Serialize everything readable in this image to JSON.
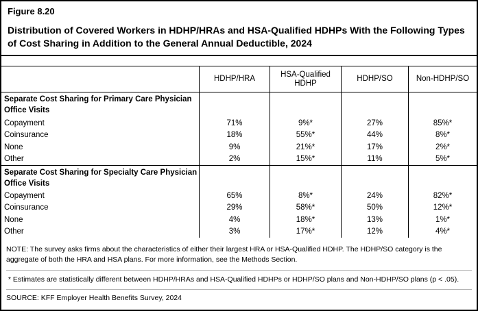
{
  "figure": {
    "label": "Figure 8.20",
    "title": "Distribution of Covered Workers in HDHP/HRAs and HSA-Qualified HDHPs With the Following Types of Cost Sharing in Addition to the General Annual Deductible, 2024"
  },
  "table": {
    "columns": [
      "HDHP/HRA",
      "HSA-Qualified HDHP",
      "HDHP/SO",
      "Non-HDHP/SO"
    ],
    "sections": [
      {
        "header": "Separate Cost Sharing for Primary Care Physician Office Visits",
        "rows": [
          {
            "label": "Copayment",
            "values": [
              "71%",
              "9%*",
              "27%",
              "85%*"
            ]
          },
          {
            "label": "Coinsurance",
            "values": [
              "18%",
              "55%*",
              "44%",
              "8%*"
            ]
          },
          {
            "label": "None",
            "values": [
              "9%",
              "21%*",
              "17%",
              "2%*"
            ]
          },
          {
            "label": "Other",
            "values": [
              "2%",
              "15%*",
              "11%",
              "5%*"
            ]
          }
        ]
      },
      {
        "header": "Separate Cost Sharing for Specialty Care Physician Office Visits",
        "rows": [
          {
            "label": "Copayment",
            "values": [
              "65%",
              "8%*",
              "24%",
              "82%*"
            ]
          },
          {
            "label": "Coinsurance",
            "values": [
              "29%",
              "58%*",
              "50%",
              "12%*"
            ]
          },
          {
            "label": "None",
            "values": [
              "4%",
              "18%*",
              "13%",
              "1%*"
            ]
          },
          {
            "label": "Other",
            "values": [
              "3%",
              "17%*",
              "12%",
              "4%*"
            ]
          }
        ]
      }
    ]
  },
  "notes": {
    "note": "NOTE: The survey asks firms about the characteristics of either their largest HRA or HSA-Qualified HDHP. The HDHP/SO category is the aggregate of both the HRA and HSA plans. For more information, see the Methods Section.",
    "asterisk": " * Estimates are statistically different between HDHP/HRAs and HSA-Qualified HDHPs or HDHP/SO plans and Non-HDHP/SO plans (p < .05).",
    "source": "SOURCE: KFF Employer Health Benefits Survey, 2024"
  }
}
